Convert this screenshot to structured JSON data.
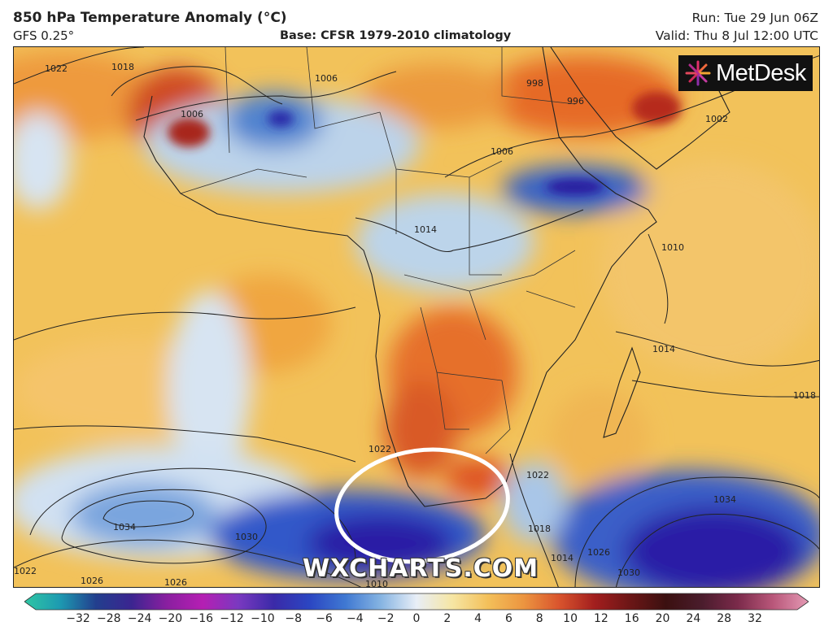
{
  "header": {
    "title": "850 hPa Temperature Anomaly (°C)",
    "model": "GFS 0.25°",
    "base": "Base: CFSR 1979-2010 climatology",
    "run": "Run: Tue 29 Jun 06Z",
    "valid": "Valid: Thu 8 Jul 12:00 UTC"
  },
  "logo": {
    "text": "MetDesk"
  },
  "watermark": "WXCHARTS.COM",
  "isobar_labels": [
    "1022",
    "1018",
    "1006",
    "1006",
    "1006",
    "998",
    "996",
    "1002",
    "1014",
    "1010",
    "1014",
    "1018",
    "1022",
    "1022",
    "1018",
    "1014",
    "1026",
    "1030",
    "1034",
    "1034",
    "1030",
    "1026",
    "1026",
    "1022",
    "1010"
  ],
  "colorbar": {
    "ticks": [
      "−32",
      "−28",
      "−24",
      "−20",
      "−16",
      "−12",
      "−10",
      "−8",
      "−6",
      "−4",
      "−2",
      "0",
      "2",
      "4",
      "6",
      "8",
      "10",
      "12",
      "16",
      "20",
      "24",
      "28",
      "32"
    ],
    "colors": [
      "#2fc7a4",
      "#1d9ab1",
      "#223f8e",
      "#3b2590",
      "#8a1fa0",
      "#b51fb3",
      "#7a39c0",
      "#3a2aa8",
      "#2b46c2",
      "#3f78d2",
      "#86b4e2",
      "#e8eef7",
      "#f6e6a4",
      "#f3c05a",
      "#ec9540",
      "#d9542d",
      "#a21e1e",
      "#6b1616",
      "#3b1010",
      "#4a1c2c",
      "#7a2a4a",
      "#b9577a",
      "#e49ab4"
    ]
  },
  "colors": {
    "warm": "#f0b43c",
    "hot": "#e2571f",
    "cold": "#2f5dc6",
    "deep_cold": "#2a1aa6",
    "neutral": "#eef3f8"
  }
}
